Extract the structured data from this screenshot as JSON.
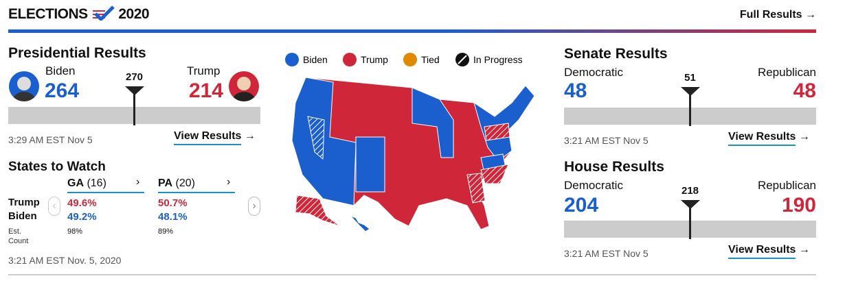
{
  "header": {
    "title_left": "ELECTIONS",
    "title_right": "2020",
    "link": "Full Results"
  },
  "presidential": {
    "title": "Presidential Results",
    "candidates": [
      {
        "name": "Biden",
        "votes": 264
      },
      {
        "name": "Trump",
        "votes": 214
      }
    ],
    "threshold": 270,
    "updated": "3:29 AM EST Nov 5",
    "link": "View Results"
  },
  "states": {
    "title": "States to Watch",
    "row_labels": [
      "Trump",
      "Biden"
    ],
    "count_label": "Est. Count",
    "items": [
      {
        "name": "GA",
        "votes": "(16)",
        "trump": "49.6%",
        "biden": "49.2%",
        "count": "98%"
      },
      {
        "name": "PA",
        "votes": "(20)",
        "trump": "50.7%",
        "biden": "48.1%",
        "count": "89%"
      }
    ],
    "updated": "3:21 AM EST Nov. 5, 2020"
  },
  "map": {
    "legend": [
      "Biden",
      "Trump",
      "Tied",
      "In Progress"
    ]
  },
  "senate": {
    "title": "Senate Results",
    "parties": [
      {
        "name": "Democratic",
        "seats": 48
      },
      {
        "name": "Republican",
        "seats": 48
      }
    ],
    "threshold": 51,
    "updated": "3:21 AM EST Nov 5",
    "link": "View Results"
  },
  "house": {
    "title": "House Results",
    "parties": [
      {
        "name": "Democratic",
        "seats": 204
      },
      {
        "name": "Republican",
        "seats": 190
      }
    ],
    "threshold": 218,
    "updated": "3:21 AM EST Nov 5",
    "link": "View Results"
  }
}
